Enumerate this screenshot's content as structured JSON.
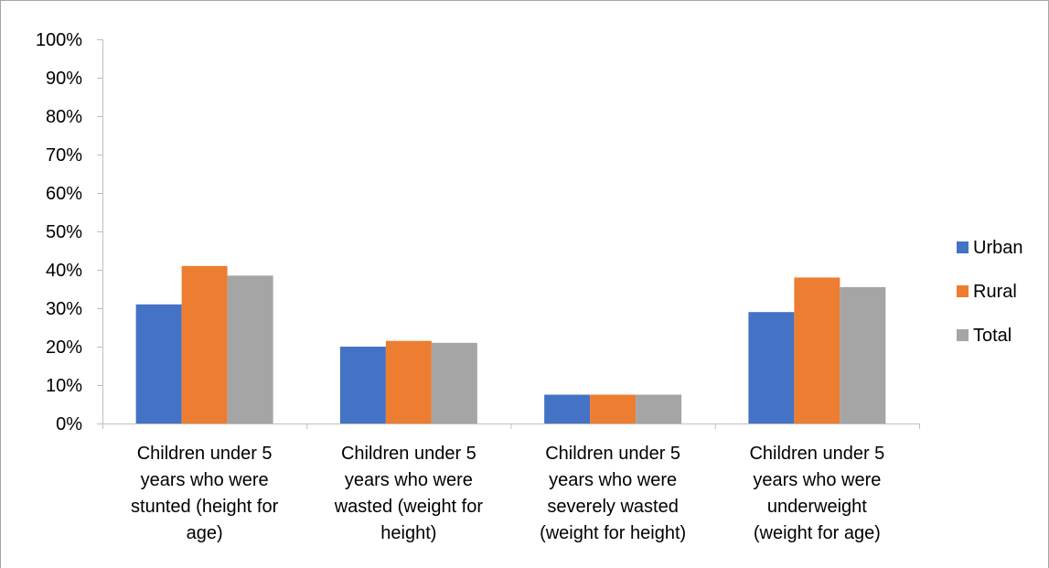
{
  "chart_data": {
    "type": "bar",
    "title": "",
    "xlabel": "",
    "ylabel": "",
    "ylim": [
      0,
      100
    ],
    "yticks": [
      "0%",
      "10%",
      "20%",
      "30%",
      "40%",
      "50%",
      "60%",
      "70%",
      "80%",
      "90%",
      "100%"
    ],
    "categories": [
      [
        "Children under 5",
        "years who were",
        "stunted (height for",
        "age)"
      ],
      [
        "Children under 5",
        "years who were",
        "wasted (weight for",
        "height)"
      ],
      [
        "Children under 5",
        "years who were",
        "severely wasted",
        "(weight for height)"
      ],
      [
        "Children under 5",
        "years who were",
        "underweight",
        "(weight for age)"
      ]
    ],
    "series": [
      {
        "name": "Urban",
        "color": "#4472C4",
        "values": [
          31.0,
          20.0,
          7.5,
          29.0
        ]
      },
      {
        "name": "Rural",
        "color": "#ED7D31",
        "values": [
          41.0,
          21.5,
          7.5,
          38.0
        ]
      },
      {
        "name": "Total",
        "color": "#A5A5A5",
        "values": [
          38.5,
          21.0,
          7.5,
          35.5
        ]
      }
    ],
    "grid": false,
    "legend": "right"
  }
}
